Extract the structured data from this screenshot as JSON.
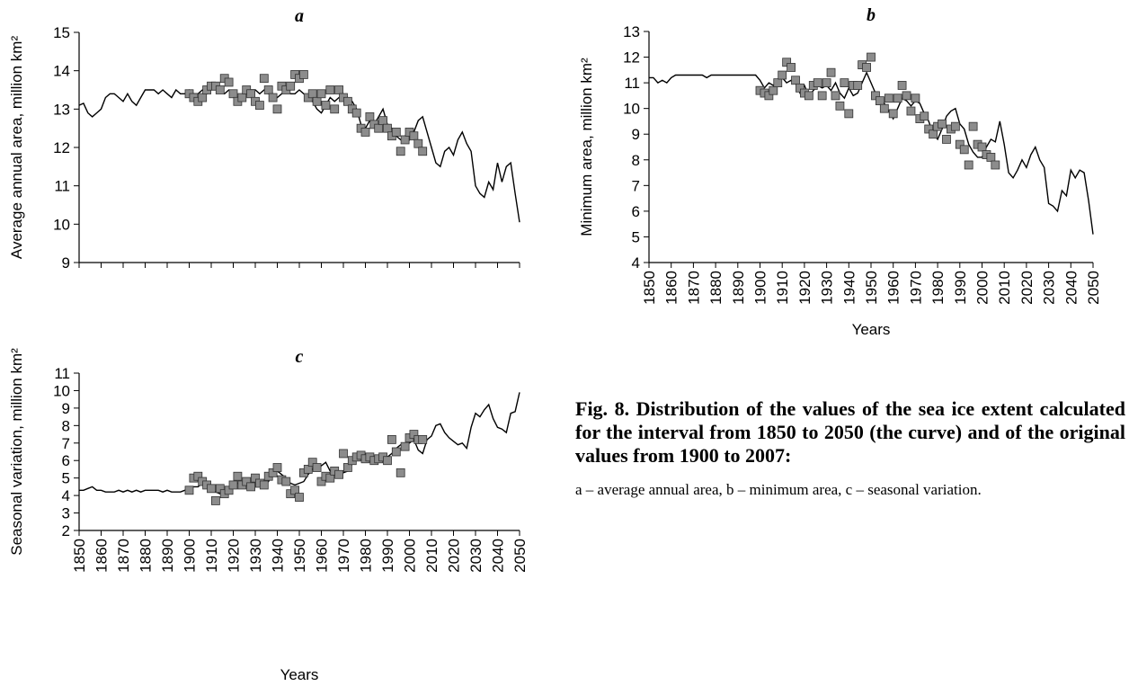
{
  "chart_data": [
    {
      "type": "line",
      "title": "a",
      "ylabel": "Average annual area, million km²",
      "show_xtick_labels": false,
      "xlim": [
        1850,
        2050
      ],
      "xticks": [
        1850,
        1860,
        1870,
        1880,
        1890,
        1900,
        1910,
        1920,
        1930,
        1940,
        1950,
        1960,
        1970,
        1980,
        1990,
        2000,
        2010,
        2020,
        2030,
        2040,
        2050
      ],
      "ylim": [
        9,
        15
      ],
      "yticks": [
        9,
        10,
        11,
        12,
        13,
        14,
        15
      ],
      "series": [
        {
          "type": "line",
          "color": "#000000",
          "x": [
            1850,
            1852,
            1854,
            1856,
            1858,
            1860,
            1862,
            1864,
            1866,
            1868,
            1870,
            1872,
            1874,
            1876,
            1878,
            1880,
            1882,
            1884,
            1886,
            1888,
            1890,
            1892,
            1894,
            1896,
            1898,
            1900,
            1902,
            1904,
            1906,
            1908,
            1910,
            1912,
            1914,
            1916,
            1918,
            1920,
            1922,
            1924,
            1926,
            1928,
            1930,
            1932,
            1934,
            1936,
            1938,
            1940,
            1942,
            1944,
            1946,
            1948,
            1950,
            1952,
            1954,
            1956,
            1958,
            1960,
            1962,
            1964,
            1966,
            1968,
            1970,
            1972,
            1974,
            1976,
            1978,
            1980,
            1982,
            1984,
            1986,
            1988,
            1990,
            1992,
            1994,
            1996,
            1998,
            2000,
            2002,
            2004,
            2006,
            2008,
            2010,
            2012,
            2014,
            2016,
            2018,
            2020,
            2022,
            2024,
            2026,
            2028,
            2030,
            2032,
            2034,
            2036,
            2038,
            2040,
            2042,
            2044,
            2046,
            2048,
            2050
          ],
          "values": [
            13.1,
            13.15,
            12.9,
            12.8,
            12.9,
            13.0,
            13.3,
            13.4,
            13.4,
            13.3,
            13.2,
            13.4,
            13.2,
            13.1,
            13.3,
            13.5,
            13.5,
            13.5,
            13.4,
            13.5,
            13.4,
            13.3,
            13.5,
            13.4,
            13.4,
            13.5,
            13.4,
            13.4,
            13.5,
            13.4,
            13.5,
            13.6,
            13.5,
            13.4,
            13.5,
            13.4,
            13.3,
            13.3,
            13.4,
            13.5,
            13.5,
            13.4,
            13.5,
            13.4,
            13.4,
            13.3,
            13.4,
            13.5,
            13.4,
            13.4,
            13.5,
            13.4,
            13.3,
            13.2,
            13.0,
            12.9,
            13.1,
            13.3,
            13.2,
            13.3,
            13.4,
            13.3,
            13.2,
            13.0,
            12.6,
            12.5,
            12.7,
            12.6,
            12.8,
            13.0,
            12.6,
            12.5,
            12.3,
            12.2,
            12.3,
            12.2,
            12.4,
            12.7,
            12.8,
            12.4,
            12.0,
            11.6,
            11.5,
            11.9,
            12.0,
            11.8,
            12.2,
            12.4,
            12.1,
            11.9,
            11.0,
            10.8,
            10.7,
            11.1,
            10.9,
            11.6,
            11.1,
            11.5,
            11.6,
            10.8,
            10.05
          ]
        },
        {
          "type": "scatter",
          "color": "#8c8c8c",
          "x": [
            1900,
            1902,
            1904,
            1906,
            1908,
            1910,
            1912,
            1914,
            1916,
            1918,
            1920,
            1922,
            1924,
            1926,
            1928,
            1930,
            1932,
            1934,
            1936,
            1938,
            1940,
            1942,
            1944,
            1946,
            1948,
            1950,
            1952,
            1954,
            1956,
            1958,
            1960,
            1962,
            1964,
            1966,
            1968,
            1970,
            1972,
            1974,
            1976,
            1978,
            1980,
            1982,
            1984,
            1986,
            1988,
            1990,
            1992,
            1994,
            1996,
            1998,
            2000,
            2002,
            2004,
            2006
          ],
          "values": [
            13.4,
            13.3,
            13.2,
            13.3,
            13.5,
            13.6,
            13.6,
            13.5,
            13.8,
            13.7,
            13.4,
            13.2,
            13.3,
            13.5,
            13.4,
            13.2,
            13.1,
            13.8,
            13.5,
            13.3,
            13.0,
            13.6,
            13.5,
            13.6,
            13.9,
            13.8,
            13.9,
            13.3,
            13.4,
            13.2,
            13.4,
            13.1,
            13.5,
            13.0,
            13.5,
            13.3,
            13.2,
            13.0,
            12.9,
            12.5,
            12.4,
            12.8,
            12.6,
            12.5,
            12.7,
            12.5,
            12.3,
            12.4,
            11.9,
            12.2,
            12.4,
            12.3,
            12.1,
            11.9
          ]
        }
      ]
    },
    {
      "type": "line",
      "title": "b",
      "ylabel": "Minimum area, million km²",
      "xlabel": "Years",
      "show_xtick_labels": true,
      "xlim": [
        1850,
        2050
      ],
      "xticks": [
        1850,
        1860,
        1870,
        1880,
        1890,
        1900,
        1910,
        1920,
        1930,
        1940,
        1950,
        1960,
        1970,
        1980,
        1990,
        2000,
        2010,
        2020,
        2030,
        2040,
        2050
      ],
      "ylim": [
        4,
        13
      ],
      "yticks": [
        4,
        5,
        6,
        7,
        8,
        9,
        10,
        11,
        12,
        13
      ],
      "series": [
        {
          "type": "line",
          "color": "#000000",
          "x": [
            1850,
            1852,
            1854,
            1856,
            1858,
            1860,
            1862,
            1864,
            1866,
            1868,
            1870,
            1872,
            1874,
            1876,
            1878,
            1880,
            1882,
            1884,
            1886,
            1888,
            1890,
            1892,
            1894,
            1896,
            1898,
            1900,
            1902,
            1904,
            1906,
            1908,
            1910,
            1912,
            1914,
            1916,
            1918,
            1920,
            1922,
            1924,
            1926,
            1928,
            1930,
            1932,
            1934,
            1936,
            1938,
            1940,
            1942,
            1944,
            1946,
            1948,
            1950,
            1952,
            1954,
            1956,
            1958,
            1960,
            1962,
            1964,
            1966,
            1968,
            1970,
            1972,
            1974,
            1976,
            1978,
            1980,
            1982,
            1984,
            1986,
            1988,
            1990,
            1992,
            1994,
            1996,
            1998,
            2000,
            2002,
            2004,
            2006,
            2008,
            2010,
            2012,
            2014,
            2016,
            2018,
            2020,
            2022,
            2024,
            2026,
            2028,
            2030,
            2032,
            2034,
            2036,
            2038,
            2040,
            2042,
            2044,
            2046,
            2048,
            2050
          ],
          "values": [
            11.2,
            11.2,
            11.0,
            11.1,
            11.0,
            11.2,
            11.3,
            11.3,
            11.3,
            11.3,
            11.3,
            11.3,
            11.3,
            11.2,
            11.3,
            11.3,
            11.3,
            11.3,
            11.3,
            11.3,
            11.3,
            11.3,
            11.3,
            11.3,
            11.3,
            11.1,
            10.8,
            11.0,
            10.9,
            11.1,
            11.2,
            11.0,
            11.1,
            11.0,
            10.6,
            10.9,
            10.5,
            10.7,
            10.9,
            10.8,
            10.9,
            10.7,
            11.0,
            10.6,
            10.4,
            10.8,
            10.5,
            10.6,
            11.0,
            11.4,
            11.0,
            10.6,
            10.4,
            10.2,
            9.9,
            9.6,
            10.0,
            10.4,
            10.3,
            10.1,
            10.3,
            10.2,
            9.8,
            9.5,
            9.0,
            8.8,
            9.2,
            9.7,
            9.9,
            10.0,
            9.4,
            9.2,
            8.6,
            8.3,
            8.1,
            8.1,
            8.5,
            8.8,
            8.7,
            9.5,
            8.6,
            7.5,
            7.3,
            7.6,
            8.0,
            7.7,
            8.2,
            8.5,
            8.0,
            7.7,
            6.3,
            6.2,
            6.0,
            6.8,
            6.6,
            7.6,
            7.3,
            7.6,
            7.5,
            6.4,
            5.1
          ]
        },
        {
          "type": "scatter",
          "color": "#8c8c8c",
          "x": [
            1900,
            1902,
            1904,
            1906,
            1908,
            1910,
            1912,
            1914,
            1916,
            1918,
            1920,
            1922,
            1924,
            1926,
            1928,
            1930,
            1932,
            1934,
            1936,
            1938,
            1940,
            1942,
            1944,
            1946,
            1948,
            1950,
            1952,
            1954,
            1956,
            1958,
            1960,
            1962,
            1964,
            1966,
            1968,
            1970,
            1972,
            1974,
            1976,
            1978,
            1980,
            1982,
            1984,
            1986,
            1988,
            1990,
            1992,
            1994,
            1996,
            1998,
            2000,
            2002,
            2004,
            2006
          ],
          "values": [
            10.7,
            10.6,
            10.5,
            10.7,
            11.0,
            11.3,
            11.8,
            11.6,
            11.1,
            10.8,
            10.6,
            10.5,
            10.9,
            11.0,
            10.5,
            11.0,
            11.4,
            10.5,
            10.1,
            11.0,
            9.8,
            10.9,
            10.9,
            11.7,
            11.6,
            12.0,
            10.5,
            10.3,
            10.0,
            10.4,
            9.8,
            10.4,
            10.9,
            10.5,
            9.9,
            10.4,
            9.6,
            9.7,
            9.2,
            9.0,
            9.3,
            9.4,
            8.8,
            9.2,
            9.3,
            8.6,
            8.4,
            7.8,
            9.3,
            8.6,
            8.5,
            8.2,
            8.1,
            7.8
          ]
        }
      ]
    },
    {
      "type": "line",
      "title": "c",
      "ylabel": "Seasonal variation, million km²",
      "xlabel": "Years",
      "show_xtick_labels": true,
      "xlim": [
        1850,
        2050
      ],
      "xticks": [
        1850,
        1860,
        1870,
        1880,
        1890,
        1900,
        1910,
        1920,
        1930,
        1940,
        1950,
        1960,
        1970,
        1980,
        1990,
        2000,
        2010,
        2020,
        2030,
        2040,
        2050
      ],
      "ylim": [
        2,
        11
      ],
      "yticks": [
        2,
        3,
        4,
        5,
        6,
        7,
        8,
        9,
        10,
        11
      ],
      "series": [
        {
          "type": "line",
          "color": "#000000",
          "x": [
            1850,
            1852,
            1854,
            1856,
            1858,
            1860,
            1862,
            1864,
            1866,
            1868,
            1870,
            1872,
            1874,
            1876,
            1878,
            1880,
            1882,
            1884,
            1886,
            1888,
            1890,
            1892,
            1894,
            1896,
            1898,
            1900,
            1902,
            1904,
            1906,
            1908,
            1910,
            1912,
            1914,
            1916,
            1918,
            1920,
            1922,
            1924,
            1926,
            1928,
            1930,
            1932,
            1934,
            1936,
            1938,
            1940,
            1942,
            1944,
            1946,
            1948,
            1950,
            1952,
            1954,
            1956,
            1958,
            1960,
            1962,
            1964,
            1966,
            1968,
            1970,
            1972,
            1974,
            1976,
            1978,
            1980,
            1982,
            1984,
            1986,
            1988,
            1990,
            1992,
            1994,
            1996,
            1998,
            2000,
            2002,
            2004,
            2006,
            2008,
            2010,
            2012,
            2014,
            2016,
            2018,
            2020,
            2022,
            2024,
            2026,
            2028,
            2030,
            2032,
            2034,
            2036,
            2038,
            2040,
            2042,
            2044,
            2046,
            2048,
            2050
          ],
          "values": [
            4.3,
            4.3,
            4.4,
            4.5,
            4.3,
            4.3,
            4.2,
            4.2,
            4.2,
            4.3,
            4.2,
            4.3,
            4.2,
            4.3,
            4.2,
            4.3,
            4.3,
            4.3,
            4.3,
            4.2,
            4.3,
            4.2,
            4.2,
            4.2,
            4.3,
            4.4,
            4.5,
            4.5,
            4.7,
            4.5,
            4.4,
            4.2,
            4.1,
            4.3,
            4.4,
            4.5,
            4.7,
            4.8,
            4.7,
            4.6,
            4.6,
            4.5,
            4.7,
            4.8,
            5.3,
            5.4,
            5.2,
            5.0,
            4.7,
            4.6,
            4.7,
            4.8,
            5.2,
            5.5,
            5.8,
            5.7,
            5.9,
            5.4,
            5.3,
            5.2,
            5.3,
            5.4,
            5.8,
            6.0,
            6.2,
            6.3,
            6.1,
            6.0,
            6.2,
            6.0,
            6.2,
            6.4,
            6.7,
            6.9,
            7.0,
            7.0,
            7.2,
            6.6,
            6.4,
            7.2,
            7.4,
            8.0,
            8.1,
            7.6,
            7.3,
            7.1,
            6.9,
            7.0,
            6.7,
            7.9,
            8.7,
            8.5,
            8.9,
            9.2,
            8.4,
            7.9,
            7.8,
            7.6,
            8.7,
            8.8,
            9.9
          ]
        },
        {
          "type": "scatter",
          "color": "#8c8c8c",
          "x": [
            1900,
            1902,
            1904,
            1906,
            1908,
            1910,
            1912,
            1914,
            1916,
            1918,
            1920,
            1922,
            1924,
            1926,
            1928,
            1930,
            1932,
            1934,
            1936,
            1938,
            1940,
            1942,
            1944,
            1946,
            1948,
            1950,
            1952,
            1954,
            1956,
            1958,
            1960,
            1962,
            1964,
            1966,
            1968,
            1970,
            1972,
            1974,
            1976,
            1978,
            1980,
            1982,
            1984,
            1986,
            1988,
            1990,
            1992,
            1994,
            1996,
            1998,
            2000,
            2002,
            2004,
            2006
          ],
          "values": [
            4.3,
            5.0,
            5.1,
            4.8,
            4.6,
            4.4,
            3.7,
            4.4,
            4.1,
            4.3,
            4.6,
            5.1,
            4.6,
            4.8,
            4.5,
            5.0,
            4.7,
            4.6,
            5.1,
            5.3,
            5.6,
            4.9,
            4.8,
            4.1,
            4.3,
            3.9,
            5.3,
            5.5,
            5.9,
            5.6,
            4.8,
            5.1,
            5.0,
            5.4,
            5.2,
            6.4,
            5.6,
            6.0,
            6.2,
            6.3,
            6.1,
            6.2,
            6.0,
            6.1,
            6.2,
            6.0,
            7.2,
            6.5,
            5.3,
            6.8,
            7.3,
            7.5,
            7.2,
            7.2
          ]
        }
      ]
    }
  ],
  "caption": {
    "title": "Fig. 8. Distribution of the values of the sea ice extent calculated for the interval from 1850 to 2050 (the curve) and of the original values from 1900 to 2007:",
    "text": "a – average annual area, b – minimum area, c – seasonal variation."
  }
}
